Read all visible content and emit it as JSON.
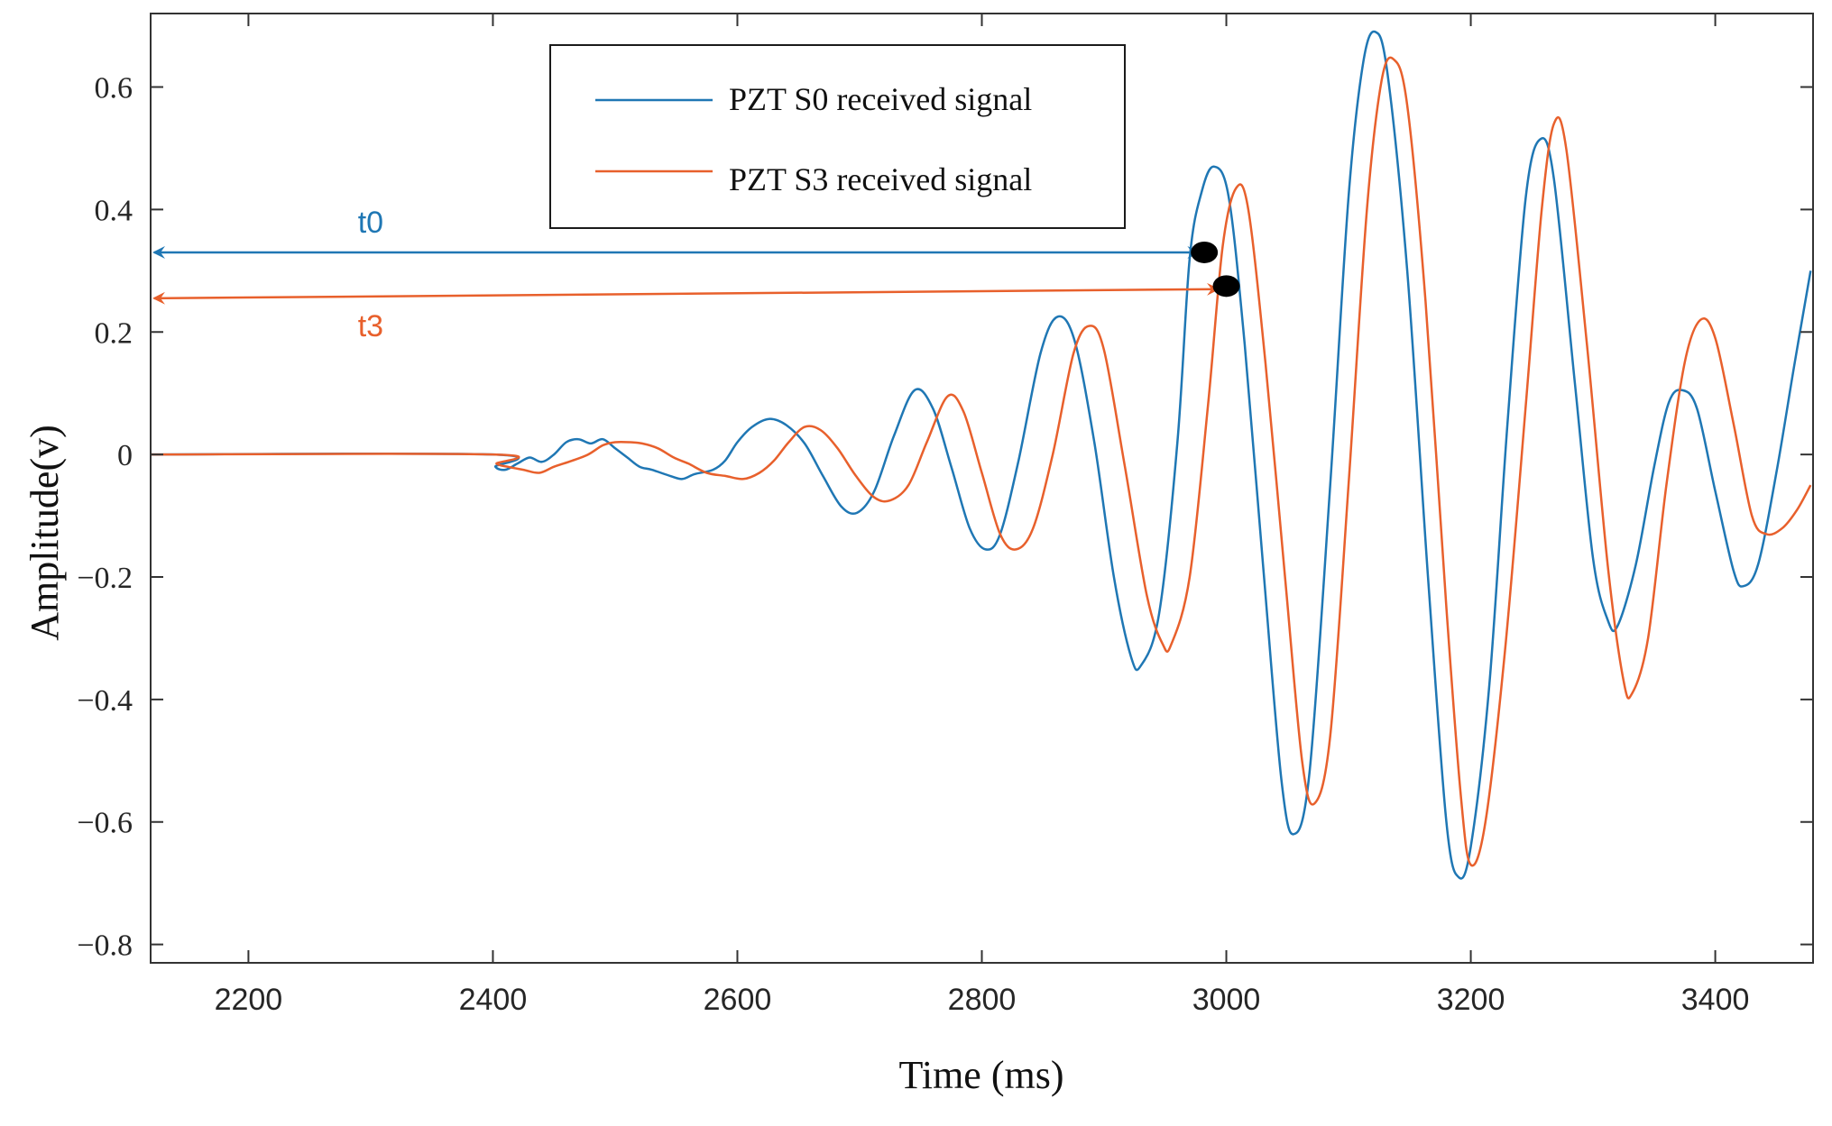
{
  "chart_data": {
    "type": "line",
    "title": "",
    "xlabel": "Time (ms)",
    "ylabel": "Amplitude(v)",
    "xlim": [
      2120,
      3480
    ],
    "ylim": [
      -0.83,
      0.72
    ],
    "xticks": [
      2200,
      2400,
      2600,
      2800,
      3000,
      3200,
      3400
    ],
    "yticks": [
      0.6,
      0.4,
      0.2,
      0,
      -0.2,
      -0.4,
      -0.6,
      -0.8
    ],
    "ytick_labels": [
      "0.6",
      "0.4",
      "0.2",
      "0",
      "−0.2",
      "−0.4",
      "−0.6",
      "−0.8"
    ],
    "grid": false,
    "legend_position": "top-center",
    "series": [
      {
        "name": "PZT S0 received signal",
        "color": "#1f77b4",
        "points": [
          [
            2120,
            0
          ],
          [
            2400,
            0
          ],
          [
            2402,
            -0.02
          ],
          [
            2410,
            -0.025
          ],
          [
            2420,
            -0.015
          ],
          [
            2430,
            -0.005
          ],
          [
            2440,
            -0.012
          ],
          [
            2450,
            0.0
          ],
          [
            2460,
            0.02
          ],
          [
            2470,
            0.025
          ],
          [
            2480,
            0.018
          ],
          [
            2490,
            0.025
          ],
          [
            2500,
            0.01
          ],
          [
            2510,
            -0.005
          ],
          [
            2520,
            -0.02
          ],
          [
            2530,
            -0.025
          ],
          [
            2545,
            -0.035
          ],
          [
            2555,
            -0.04
          ],
          [
            2565,
            -0.032
          ],
          [
            2580,
            -0.025
          ],
          [
            2590,
            -0.01
          ],
          [
            2600,
            0.02
          ],
          [
            2612,
            0.045
          ],
          [
            2626,
            0.058
          ],
          [
            2640,
            0.048
          ],
          [
            2655,
            0.018
          ],
          [
            2670,
            -0.035
          ],
          [
            2685,
            -0.085
          ],
          [
            2698,
            -0.095
          ],
          [
            2712,
            -0.06
          ],
          [
            2728,
            0.03
          ],
          [
            2745,
            0.105
          ],
          [
            2760,
            0.075
          ],
          [
            2775,
            -0.02
          ],
          [
            2790,
            -0.12
          ],
          [
            2803,
            -0.155
          ],
          [
            2815,
            -0.13
          ],
          [
            2830,
            -0.01
          ],
          [
            2848,
            0.165
          ],
          [
            2862,
            0.225
          ],
          [
            2876,
            0.185
          ],
          [
            2892,
            0.02
          ],
          [
            2908,
            -0.2
          ],
          [
            2922,
            -0.33
          ],
          [
            2930,
            -0.345
          ],
          [
            2945,
            -0.26
          ],
          [
            2960,
            0.02
          ],
          [
            2970,
            0.32
          ],
          [
            2980,
            0.43
          ],
          [
            2990,
            0.47
          ],
          [
            3002,
            0.42
          ],
          [
            3015,
            0.18
          ],
          [
            3030,
            -0.18
          ],
          [
            3045,
            -0.53
          ],
          [
            3055,
            -0.62
          ],
          [
            3068,
            -0.52
          ],
          [
            3085,
            -0.05
          ],
          [
            3100,
            0.42
          ],
          [
            3112,
            0.64
          ],
          [
            3122,
            0.69
          ],
          [
            3132,
            0.62
          ],
          [
            3148,
            0.3
          ],
          [
            3165,
            -0.2
          ],
          [
            3180,
            -0.6
          ],
          [
            3190,
            -0.69
          ],
          [
            3200,
            -0.64
          ],
          [
            3215,
            -0.38
          ],
          [
            3230,
            0.05
          ],
          [
            3245,
            0.42
          ],
          [
            3257,
            0.515
          ],
          [
            3268,
            0.45
          ],
          [
            3285,
            0.12
          ],
          [
            3300,
            -0.17
          ],
          [
            3312,
            -0.27
          ],
          [
            3320,
            -0.28
          ],
          [
            3335,
            -0.18
          ],
          [
            3350,
            -0.02
          ],
          [
            3362,
            0.085
          ],
          [
            3373,
            0.105
          ],
          [
            3385,
            0.075
          ],
          [
            3400,
            -0.06
          ],
          [
            3415,
            -0.19
          ],
          [
            3423,
            -0.215
          ],
          [
            3435,
            -0.18
          ],
          [
            3450,
            -0.03
          ],
          [
            3465,
            0.15
          ],
          [
            3478,
            0.3
          ]
        ]
      },
      {
        "name": "PZT S3 received signal",
        "color": "#e8602c",
        "points": [
          [
            2120,
            0
          ],
          [
            2400,
            0
          ],
          [
            2403,
            -0.015
          ],
          [
            2412,
            -0.02
          ],
          [
            2425,
            -0.025
          ],
          [
            2438,
            -0.03
          ],
          [
            2450,
            -0.02
          ],
          [
            2465,
            -0.01
          ],
          [
            2478,
            0.0
          ],
          [
            2490,
            0.015
          ],
          [
            2500,
            0.02
          ],
          [
            2512,
            0.02
          ],
          [
            2522,
            0.018
          ],
          [
            2535,
            0.01
          ],
          [
            2548,
            -0.005
          ],
          [
            2560,
            -0.015
          ],
          [
            2575,
            -0.03
          ],
          [
            2590,
            -0.035
          ],
          [
            2605,
            -0.04
          ],
          [
            2618,
            -0.03
          ],
          [
            2630,
            -0.01
          ],
          [
            2642,
            0.02
          ],
          [
            2655,
            0.045
          ],
          [
            2668,
            0.04
          ],
          [
            2682,
            0.01
          ],
          [
            2697,
            -0.035
          ],
          [
            2712,
            -0.07
          ],
          [
            2725,
            -0.075
          ],
          [
            2740,
            -0.05
          ],
          [
            2755,
            0.02
          ],
          [
            2772,
            0.095
          ],
          [
            2785,
            0.07
          ],
          [
            2800,
            -0.03
          ],
          [
            2815,
            -0.13
          ],
          [
            2828,
            -0.155
          ],
          [
            2842,
            -0.12
          ],
          [
            2858,
            0.0
          ],
          [
            2875,
            0.165
          ],
          [
            2888,
            0.21
          ],
          [
            2900,
            0.17
          ],
          [
            2917,
            -0.02
          ],
          [
            2935,
            -0.23
          ],
          [
            2948,
            -0.31
          ],
          [
            2955,
            -0.31
          ],
          [
            2970,
            -0.2
          ],
          [
            2985,
            0.08
          ],
          [
            2997,
            0.34
          ],
          [
            3008,
            0.435
          ],
          [
            3018,
            0.4
          ],
          [
            3032,
            0.15
          ],
          [
            3048,
            -0.2
          ],
          [
            3062,
            -0.5
          ],
          [
            3072,
            -0.57
          ],
          [
            3085,
            -0.46
          ],
          [
            3100,
            -0.05
          ],
          [
            3115,
            0.4
          ],
          [
            3127,
            0.61
          ],
          [
            3137,
            0.645
          ],
          [
            3148,
            0.57
          ],
          [
            3163,
            0.25
          ],
          [
            3180,
            -0.25
          ],
          [
            3192,
            -0.56
          ],
          [
            3200,
            -0.67
          ],
          [
            3212,
            -0.6
          ],
          [
            3228,
            -0.32
          ],
          [
            3245,
            0.08
          ],
          [
            3258,
            0.4
          ],
          [
            3268,
            0.54
          ],
          [
            3278,
            0.5
          ],
          [
            3295,
            0.18
          ],
          [
            3312,
            -0.18
          ],
          [
            3325,
            -0.37
          ],
          [
            3332,
            -0.39
          ],
          [
            3345,
            -0.3
          ],
          [
            3360,
            -0.05
          ],
          [
            3375,
            0.15
          ],
          [
            3388,
            0.22
          ],
          [
            3400,
            0.19
          ],
          [
            3415,
            0.05
          ],
          [
            3430,
            -0.1
          ],
          [
            3442,
            -0.13
          ],
          [
            3455,
            -0.12
          ],
          [
            3467,
            -0.09
          ],
          [
            3478,
            -0.05
          ]
        ]
      }
    ],
    "annotations": [
      {
        "label": "t0",
        "color": "#1f77b4",
        "from_x": 2120,
        "to_x": 2977,
        "y": 0.33,
        "marker_x": 2982,
        "marker_y": 0.33
      },
      {
        "label": "t3",
        "color": "#e8602c",
        "from_x": 2120,
        "to_x": 2993,
        "y": 0.255,
        "y_end": 0.27,
        "marker_x": 3000,
        "marker_y": 0.275
      }
    ]
  }
}
